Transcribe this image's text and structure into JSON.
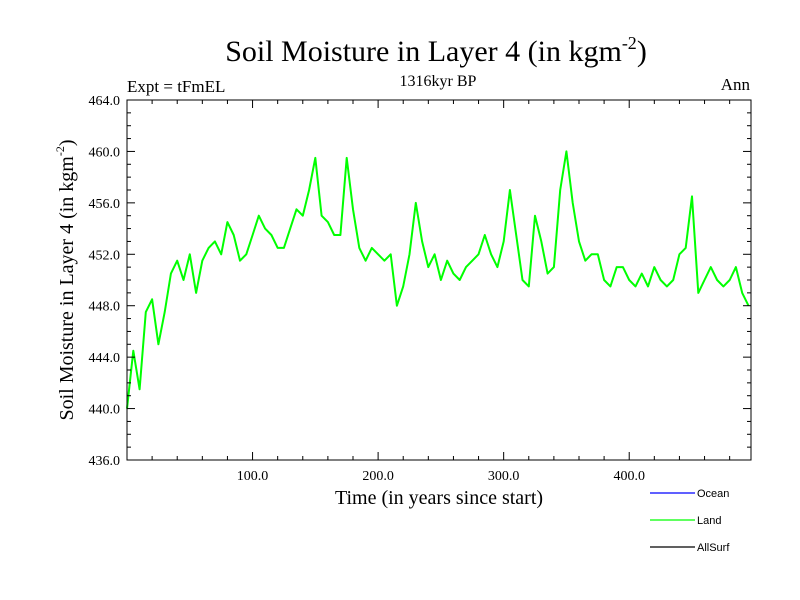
{
  "chart_data": {
    "type": "line",
    "title": "Soil Moisture in Layer 4 (in kgm",
    "title_sup": "-2",
    "title_end": ")",
    "subtitle": "1316kyr BP",
    "left_label": "Expt = tFmEL",
    "right_label": "Ann",
    "xlabel": "Time (in years since start)",
    "ylabel": "Soil Moisture in Layer 4 (in kgm",
    "ylabel_sup": "-2",
    "ylabel_end": ")",
    "xlim": [
      0,
      497
    ],
    "ylim": [
      436,
      464
    ],
    "x_ticks": [
      100,
      200,
      300,
      400
    ],
    "x_tick_labels": [
      "100.0",
      "200.0",
      "300.0",
      "400.0"
    ],
    "y_ticks": [
      436,
      440,
      444,
      448,
      452,
      456,
      460,
      464
    ],
    "y_tick_labels": [
      "436.0",
      "440.0",
      "444.0",
      "448.0",
      "452.0",
      "456.0",
      "460.0",
      "464.0"
    ],
    "legend": [
      {
        "name": "Ocean",
        "color": "#0000ff"
      },
      {
        "name": "Land",
        "color": "#00ff00"
      },
      {
        "name": "AllSurf",
        "color": "#000000"
      }
    ],
    "series": [
      {
        "name": "Land",
        "color": "#00ff00",
        "x_start": 0,
        "x_step": 5,
        "values": [
          440.0,
          444.5,
          441.5,
          447.5,
          448.5,
          445.0,
          447.5,
          450.5,
          451.5,
          450.0,
          452.0,
          449.0,
          451.5,
          452.5,
          453.0,
          452.0,
          454.5,
          453.5,
          451.5,
          452.0,
          453.5,
          455.0,
          454.0,
          453.5,
          452.5,
          452.5,
          454.0,
          455.5,
          455.0,
          457.0,
          459.5,
          455.0,
          454.5,
          453.5,
          453.5,
          459.5,
          455.5,
          452.5,
          451.5,
          452.5,
          452.0,
          451.5,
          452.0,
          448.0,
          449.5,
          452.0,
          456.0,
          453.0,
          451.0,
          452.0,
          450.0,
          451.5,
          450.5,
          450.0,
          451.0,
          451.5,
          452.0,
          453.5,
          452.0,
          451.0,
          453.0,
          457.0,
          453.5,
          450.0,
          449.5,
          455.0,
          453.0,
          450.5,
          451.0,
          457.0,
          460.0,
          456.0,
          453.0,
          451.5,
          452.0,
          452.0,
          450.0,
          449.5,
          451.0,
          451.0,
          450.0,
          449.5,
          450.5,
          449.5,
          451.0,
          450.0,
          449.5,
          450.0,
          452.0,
          452.5,
          456.5,
          449.0,
          450.0,
          451.0,
          450.0,
          449.5,
          450.0,
          451.0,
          449.0,
          448.0
        ]
      }
    ]
  }
}
